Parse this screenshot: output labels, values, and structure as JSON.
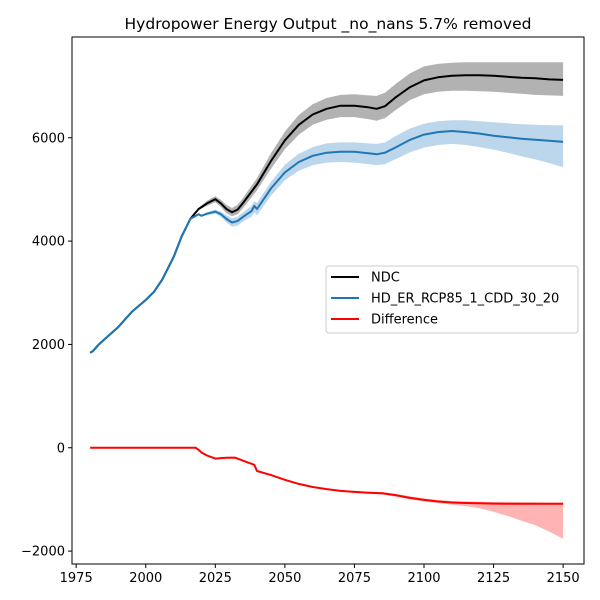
{
  "chart_data": {
    "type": "line",
    "title": "Hydropower Energy Output _no_nans 5.7% removed",
    "xlabel": "",
    "ylabel": "",
    "xlim": [
      1973.5,
      2157.5
    ],
    "ylim": [
      -2250,
      7950
    ],
    "x_ticks": [
      1975,
      2000,
      2025,
      2050,
      2075,
      2100,
      2125,
      2150
    ],
    "y_ticks": [
      -2000,
      0,
      2000,
      4000,
      6000
    ],
    "x_tick_labels": [
      "1975",
      "2000",
      "2025",
      "2050",
      "2075",
      "2100",
      "2125",
      "2150"
    ],
    "y_tick_labels": [
      "−2000",
      "0",
      "2000",
      "4000",
      "6000"
    ],
    "grid": false,
    "legend_position": "center-right",
    "series": [
      {
        "name": "NDC",
        "color": "#000000",
        "band_color": "#b2b2b2",
        "x": [
          1980,
          1981,
          1983,
          1985,
          1990,
          1995,
          2000,
          2003,
          2006,
          2010,
          2013,
          2016,
          2019,
          2022,
          2025,
          2027,
          2029,
          2031,
          2033,
          2035,
          2040,
          2045,
          2050,
          2055,
          2060,
          2065,
          2070,
          2075,
          2080,
          2083,
          2086,
          2090,
          2095,
          2100,
          2105,
          2110,
          2115,
          2120,
          2125,
          2130,
          2135,
          2140,
          2145,
          2150
        ],
        "y": [
          1840,
          1870,
          1990,
          2090,
          2330,
          2630,
          2860,
          3020,
          3260,
          3690,
          4100,
          4430,
          4620,
          4730,
          4810,
          4730,
          4620,
          4560,
          4610,
          4740,
          5100,
          5550,
          5950,
          6250,
          6450,
          6560,
          6620,
          6620,
          6590,
          6560,
          6610,
          6790,
          6980,
          7110,
          7170,
          7200,
          7210,
          7210,
          7200,
          7180,
          7160,
          7150,
          7130,
          7120
        ],
        "upper": [
          1840,
          1870,
          1990,
          2090,
          2330,
          2630,
          2860,
          3020,
          3260,
          3690,
          4100,
          4430,
          4640,
          4780,
          4870,
          4800,
          4700,
          4640,
          4700,
          4840,
          5220,
          5700,
          6120,
          6440,
          6650,
          6770,
          6830,
          6840,
          6820,
          6810,
          6870,
          7050,
          7250,
          7380,
          7430,
          7450,
          7460,
          7460,
          7460,
          7460,
          7460,
          7460,
          7460,
          7460
        ],
        "lower": [
          1840,
          1870,
          1990,
          2090,
          2330,
          2630,
          2860,
          3020,
          3260,
          3690,
          4100,
          4430,
          4600,
          4680,
          4750,
          4660,
          4540,
          4480,
          4520,
          4640,
          4980,
          5400,
          5780,
          6060,
          6250,
          6350,
          6400,
          6400,
          6360,
          6330,
          6380,
          6540,
          6730,
          6840,
          6890,
          6910,
          6910,
          6900,
          6890,
          6870,
          6850,
          6830,
          6820,
          6810
        ]
      },
      {
        "name": "HD_ER_RCP85_1_CDD_30_20",
        "color": "#1f77b4",
        "band_color": "#bcd6eb",
        "x": [
          1980,
          1981,
          1983,
          1985,
          1990,
          1995,
          2000,
          2003,
          2006,
          2010,
          2013,
          2016,
          2019,
          2020,
          2022,
          2025,
          2027,
          2029,
          2031,
          2033,
          2035,
          2038,
          2039,
          2040,
          2045,
          2050,
          2055,
          2060,
          2065,
          2070,
          2075,
          2080,
          2083,
          2086,
          2090,
          2095,
          2100,
          2105,
          2110,
          2115,
          2120,
          2125,
          2130,
          2135,
          2140,
          2145,
          2150
        ],
        "y": [
          1840,
          1870,
          1990,
          2090,
          2330,
          2630,
          2860,
          3020,
          3260,
          3690,
          4100,
          4430,
          4520,
          4490,
          4530,
          4570,
          4520,
          4430,
          4360,
          4390,
          4470,
          4580,
          4680,
          4620,
          5020,
          5330,
          5530,
          5650,
          5710,
          5730,
          5730,
          5700,
          5680,
          5710,
          5820,
          5960,
          6060,
          6110,
          6130,
          6110,
          6080,
          6040,
          6010,
          5980,
          5960,
          5940,
          5920
        ],
        "upper": [
          1840,
          1870,
          1990,
          2090,
          2330,
          2630,
          2860,
          3020,
          3260,
          3690,
          4100,
          4430,
          4530,
          4510,
          4560,
          4610,
          4570,
          4500,
          4440,
          4470,
          4560,
          4680,
          4770,
          4740,
          5150,
          5480,
          5690,
          5820,
          5890,
          5910,
          5910,
          5890,
          5880,
          5910,
          6040,
          6180,
          6270,
          6320,
          6340,
          6340,
          6320,
          6300,
          6280,
          6260,
          6250,
          6240,
          6240
        ],
        "lower": [
          1840,
          1870,
          1990,
          2090,
          2330,
          2630,
          2860,
          3020,
          3260,
          3690,
          4100,
          4430,
          4510,
          4470,
          4500,
          4530,
          4470,
          4360,
          4280,
          4300,
          4380,
          4470,
          4560,
          4500,
          4880,
          5180,
          5360,
          5470,
          5520,
          5530,
          5520,
          5490,
          5470,
          5490,
          5590,
          5720,
          5810,
          5860,
          5880,
          5860,
          5820,
          5770,
          5710,
          5640,
          5580,
          5510,
          5430
        ]
      },
      {
        "name": "Difference",
        "color": "#ff0000",
        "band_color": "#ffb3b3",
        "x": [
          1980,
          1990,
          2000,
          2010,
          2018,
          2019,
          2020,
          2022,
          2025,
          2027,
          2029,
          2032,
          2035,
          2039,
          2040,
          2045,
          2050,
          2055,
          2060,
          2065,
          2070,
          2075,
          2080,
          2085,
          2090,
          2095,
          2100,
          2105,
          2110,
          2115,
          2120,
          2125,
          2130,
          2135,
          2140,
          2145,
          2150
        ],
        "y": [
          0,
          0,
          0,
          0,
          0,
          -40,
          -90,
          -150,
          -210,
          -200,
          -195,
          -190,
          -250,
          -330,
          -450,
          -530,
          -620,
          -700,
          -760,
          -800,
          -835,
          -855,
          -870,
          -880,
          -920,
          -970,
          -1010,
          -1040,
          -1060,
          -1070,
          -1075,
          -1080,
          -1082,
          -1084,
          -1085,
          -1085,
          -1085
        ],
        "upper": [
          0,
          0,
          0,
          0,
          0,
          -40,
          -90,
          -150,
          -210,
          -200,
          -195,
          -190,
          -250,
          -330,
          -450,
          -530,
          -620,
          -700,
          -760,
          -800,
          -820,
          -835,
          -850,
          -860,
          -890,
          -940,
          -980,
          -1010,
          -1030,
          -1040,
          -1045,
          -1050,
          -1052,
          -1055,
          -1058,
          -1062,
          -1065
        ],
        "lower": [
          0,
          0,
          0,
          0,
          0,
          -40,
          -90,
          -150,
          -210,
          -200,
          -195,
          -190,
          -250,
          -330,
          -450,
          -530,
          -620,
          -700,
          -760,
          -810,
          -850,
          -875,
          -890,
          -905,
          -950,
          -1000,
          -1040,
          -1070,
          -1100,
          -1130,
          -1170,
          -1240,
          -1320,
          -1410,
          -1500,
          -1620,
          -1760
        ]
      }
    ]
  }
}
